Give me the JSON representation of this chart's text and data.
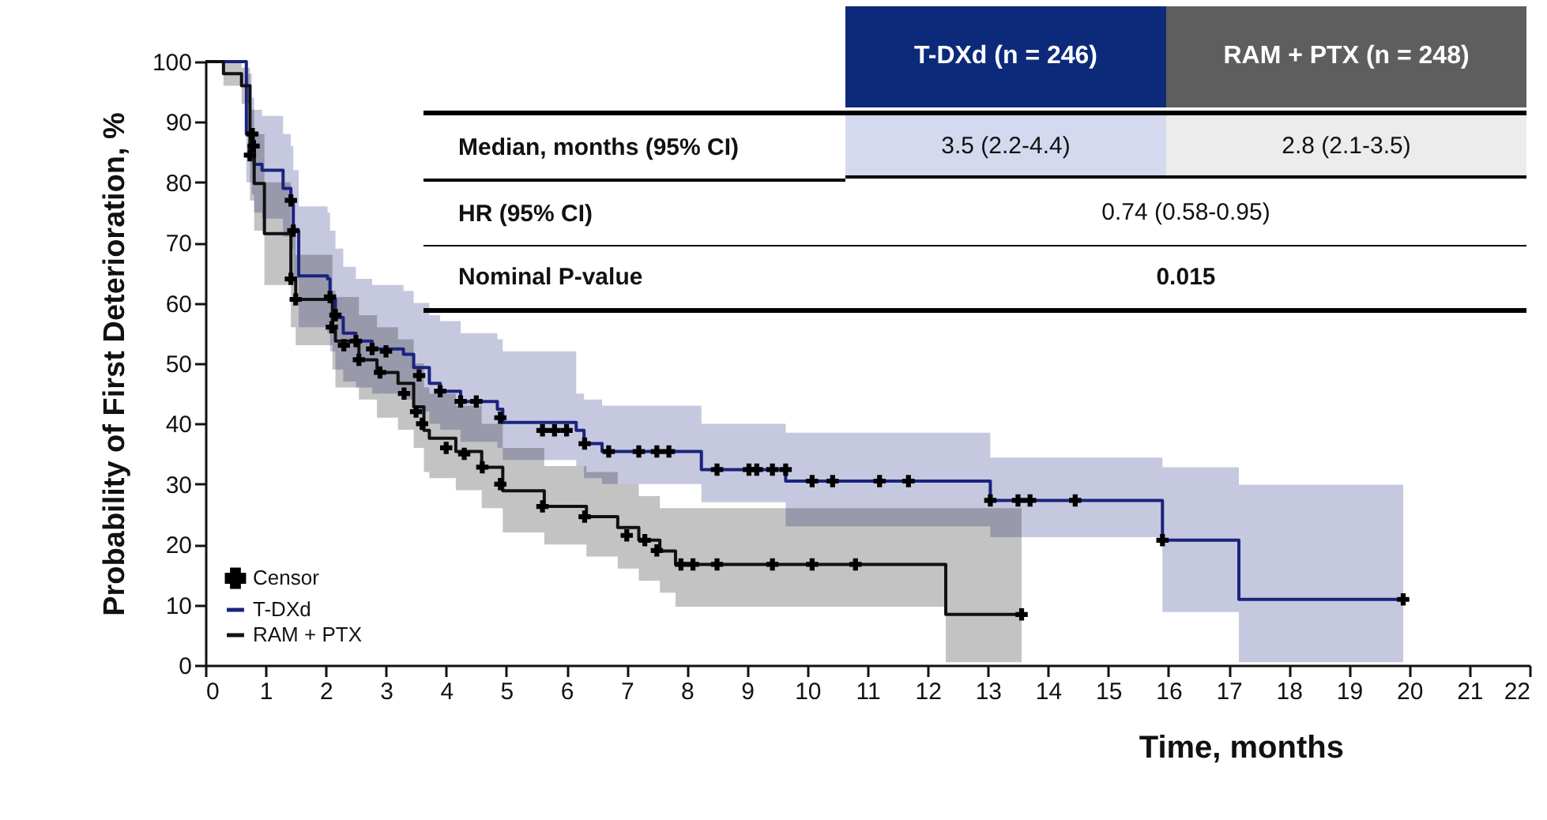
{
  "chart_data": {
    "type": "step",
    "xlabel": "Time, months",
    "ylabel": "Probability of First Deterioration, %",
    "xlim": [
      0,
      22
    ],
    "xticks": [
      0,
      1,
      2,
      3,
      4,
      5,
      6,
      7,
      8,
      9,
      10,
      11,
      12,
      13,
      14,
      15,
      16,
      17,
      18,
      19,
      20,
      21,
      22
    ],
    "ylim": [
      0,
      100
    ],
    "yticks": [
      0,
      10,
      20,
      30,
      40,
      50,
      60,
      70,
      80,
      90,
      100
    ],
    "grid": false,
    "legend": "bottom left",
    "series": [
      {
        "name": "Censor",
        "type": "scatter",
        "marker": "cross",
        "color": "#000000",
        "x": [
          0.8,
          1.42,
          1.46,
          2.07,
          2.16,
          2.5,
          2.77,
          3.0,
          3.55,
          3.9,
          4.24,
          4.5,
          4.9,
          5.6,
          5.8,
          6.0,
          6.3,
          6.7,
          7.2,
          7.5,
          7.7,
          8.5,
          9.03,
          9.16,
          9.42,
          9.64,
          10.08,
          10.42,
          11.2,
          11.68,
          13.04,
          13.5,
          13.7,
          14.45,
          15.9,
          19.9,
          0.74,
          0.78,
          1.42,
          1.5,
          2.1,
          2.3,
          2.55,
          2.9,
          3.3,
          3.5,
          3.6,
          4.0,
          4.3,
          4.6,
          4.9,
          5.6,
          6.3,
          7.0,
          7.3,
          7.5,
          7.9,
          8.1,
          8.5,
          9.42,
          10.08,
          10.8,
          13.56
        ],
        "values": [
          86,
          77,
          72,
          61,
          58,
          53.7,
          52.4,
          52,
          48,
          45.4,
          43.7,
          43.7,
          41,
          38.9,
          38.9,
          38.9,
          36.7,
          35.4,
          35.4,
          35.4,
          35.4,
          32.4,
          32.4,
          32.4,
          32.4,
          32.4,
          30.5,
          30.5,
          30.5,
          30.5,
          27.3,
          27.3,
          27.3,
          27.3,
          20.7,
          10.9,
          84.5,
          88,
          64,
          60.6,
          56,
          53,
          50.6,
          48.5,
          45,
          42,
          40,
          36,
          35,
          32.8,
          30,
          26.3,
          24.6,
          21.5,
          20.7,
          19,
          16.7,
          16.7,
          16.7,
          16.7,
          16.7,
          16.7,
          8.4
        ]
      },
      {
        "name": "T-DXd",
        "type": "step",
        "color": "#1a237e",
        "x": [
          0,
          0.68,
          0.77,
          0.81,
          0.94,
          1.29,
          1.42,
          1.46,
          1.55,
          2.03,
          2.07,
          2.16,
          2.29,
          2.5,
          2.77,
          3.29,
          3.46,
          3.72,
          3.9,
          4.24,
          4.85,
          4.94,
          6.16,
          6.29,
          6.59,
          8.24,
          9.64,
          13.04,
          15.9,
          17.17,
          19.9
        ],
        "values": [
          100,
          88,
          86,
          83,
          82,
          79,
          77,
          72,
          64.5,
          64,
          60.6,
          57.6,
          55,
          53.7,
          52.4,
          51.5,
          49.3,
          46.7,
          45.4,
          43.7,
          42.4,
          40.2,
          38.9,
          36.7,
          35.4,
          32.4,
          30.5,
          27.3,
          20.7,
          10.9,
          10.9
        ],
        "upper": [
          100,
          98,
          94,
          92,
          91,
          88,
          86,
          82,
          76,
          75,
          72,
          69,
          66,
          64,
          63,
          62,
          60,
          58,
          57,
          55,
          54,
          52,
          45,
          44,
          43,
          40,
          38.5,
          34.4,
          32.8,
          29.9,
          29.9
        ],
        "lower": [
          100,
          80,
          78,
          75,
          74,
          71,
          69,
          64,
          56,
          55,
          52,
          49,
          47,
          46,
          45,
          44,
          42,
          40,
          39,
          37,
          36,
          34,
          33,
          31,
          30,
          27,
          23,
          21.2,
          8.8,
          0.5,
          0.5
        ]
      },
      {
        "name": "RAM + PTX",
        "type": "step",
        "color": "#111111",
        "x": [
          0,
          0.3,
          0.6,
          0.74,
          0.81,
          0.98,
          1.42,
          1.5,
          2.11,
          2.16,
          2.55,
          2.85,
          3.2,
          3.46,
          3.63,
          3.72,
          4.16,
          4.59,
          4.94,
          5.63,
          6.33,
          6.85,
          7.2,
          7.55,
          7.81,
          12.3,
          13.56
        ],
        "values": [
          100,
          98,
          96,
          84.5,
          79.8,
          71.5,
          64,
          60.6,
          55.4,
          53.7,
          50.6,
          48.5,
          46.7,
          42.8,
          38.9,
          37.6,
          35.4,
          32.8,
          28.9,
          26.3,
          24.6,
          22.8,
          20.7,
          18.9,
          16.7,
          8.4,
          8.4
        ],
        "upper": [
          100,
          100,
          99,
          92,
          88,
          80,
          72,
          68,
          62,
          61,
          58,
          56,
          54,
          50,
          46,
          45,
          43,
          40,
          36,
          33,
          32,
          30,
          28,
          26,
          26,
          26,
          26
        ],
        "lower": [
          100,
          96,
          93,
          77,
          72,
          63,
          56,
          53,
          49,
          46,
          44,
          41,
          39,
          36,
          32,
          31,
          29,
          26,
          22,
          20,
          18,
          16,
          14,
          12,
          9.7,
          0.5,
          0.5
        ]
      }
    ],
    "annotations": [
      "T-DXd  (n = 246)",
      "RAM + PTX  (n = 248)",
      "Median, months (95% CI)",
      "3.5 (2.2-4.4)",
      "2.8 (2.1-3.5)",
      "HR (95% CI)",
      "0.74 (0.58-0.95)",
      "Nominal P-value",
      "0.015"
    ]
  }
}
